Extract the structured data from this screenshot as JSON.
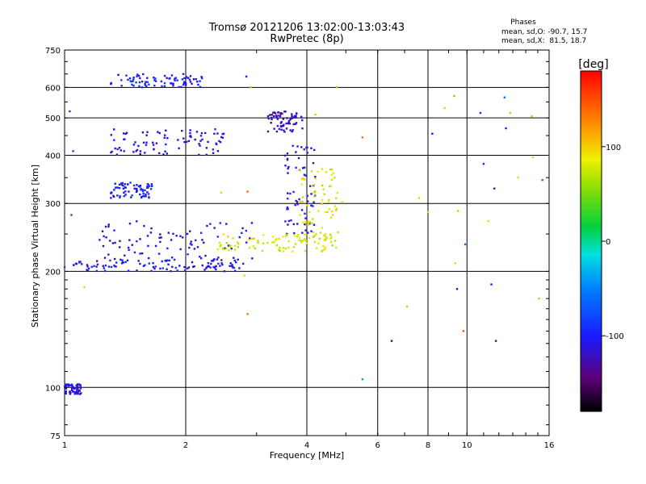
{
  "header": {
    "title_line1": "Tromsø 20121206 13:02:00-13:03:43",
    "title_line2": "RwPretec (8p)"
  },
  "phases_box": {
    "heading": "Phases",
    "line_o": "mean, sd,O: -90.7, 15.7",
    "line_x": "mean, sd,X:  81.5, 18.7"
  },
  "colorbar": {
    "unit_label": "[deg]",
    "range": [
      -180,
      180
    ],
    "tick_labels": [
      "100",
      "0",
      "-100"
    ],
    "tick_values": [
      100,
      0,
      -100
    ]
  },
  "chart_data": {
    "type": "scatter",
    "title": "Tromsø 20121206 13:02:00-13:03:43",
    "subtitle": "RwPretec (8p)",
    "xlabel": "Frequency [MHz]",
    "ylabel": "Stationary phase Virtual Height [km]",
    "x_scale": "log",
    "y_scale": "log",
    "xlim": [
      1,
      16
    ],
    "ylim": [
      75,
      750
    ],
    "x_ticks": [
      1,
      2,
      4,
      6,
      8,
      10,
      16
    ],
    "x_tick_labels": [
      "1",
      "2",
      "4",
      "6",
      "8",
      "10",
      "16"
    ],
    "y_ticks": [
      75,
      100,
      200,
      300,
      400,
      500,
      600,
      750
    ],
    "y_tick_labels": [
      "75",
      "100",
      "200",
      "300",
      "400",
      "500",
      "600",
      "750"
    ],
    "grid": true,
    "color_by": "phase [deg]",
    "clusters": [
      {
        "x_range": [
          1.3,
          2.2
        ],
        "y_range": [
          600,
          650
        ],
        "phase": -100
      },
      {
        "x_range": [
          1.3,
          2.5
        ],
        "y_range": [
          400,
          470
        ],
        "phase": -110
      },
      {
        "x_range": [
          1.3,
          1.65
        ],
        "y_range": [
          310,
          340
        ],
        "phase": -100
      },
      {
        "x_range": [
          1.2,
          3.0
        ],
        "y_range": [
          205,
          270
        ],
        "phase": -110
      },
      {
        "x_range": [
          1.05,
          2.8
        ],
        "y_range": [
          200,
          215
        ],
        "phase": -100
      },
      {
        "x_range": [
          3.2,
          3.9
        ],
        "y_range": [
          460,
          520
        ],
        "phase": -120
      },
      {
        "x_range": [
          3.5,
          4.2
        ],
        "y_range": [
          250,
          430
        ],
        "phase": -105
      },
      {
        "x_range": [
          2.4,
          4.8
        ],
        "y_range": [
          225,
          250
        ],
        "phase": 85
      },
      {
        "x_range": [
          3.8,
          4.9
        ],
        "y_range": [
          240,
          370
        ],
        "phase": 90
      },
      {
        "x_range": [
          1.0,
          1.1
        ],
        "y_range": [
          96,
          102
        ],
        "phase": -110
      }
    ],
    "points": [
      {
        "x": 1.0,
        "y": 205,
        "phase": -80
      },
      {
        "x": 1.03,
        "y": 520,
        "phase": -85
      },
      {
        "x": 1.05,
        "y": 410,
        "phase": -80
      },
      {
        "x": 1.04,
        "y": 280,
        "phase": -75
      },
      {
        "x": 1.12,
        "y": 182,
        "phase": 100
      },
      {
        "x": 2.45,
        "y": 320,
        "phase": 100
      },
      {
        "x": 2.85,
        "y": 322,
        "phase": 140
      },
      {
        "x": 2.8,
        "y": 195,
        "phase": 100
      },
      {
        "x": 2.85,
        "y": 155,
        "phase": 130
      },
      {
        "x": 2.83,
        "y": 640,
        "phase": -110
      },
      {
        "x": 2.9,
        "y": 600,
        "phase": 110
      },
      {
        "x": 4.2,
        "y": 510,
        "phase": 70
      },
      {
        "x": 4.75,
        "y": 600,
        "phase": 60
      },
      {
        "x": 5.5,
        "y": 445,
        "phase": 140
      },
      {
        "x": 5.5,
        "y": 105,
        "phase": -40
      },
      {
        "x": 6.5,
        "y": 132,
        "phase": -130
      },
      {
        "x": 7.1,
        "y": 162,
        "phase": 110
      },
      {
        "x": 7.6,
        "y": 310,
        "phase": 100
      },
      {
        "x": 8.0,
        "y": 285,
        "phase": 100
      },
      {
        "x": 8.2,
        "y": 455,
        "phase": -100
      },
      {
        "x": 8.8,
        "y": 530,
        "phase": 100
      },
      {
        "x": 9.3,
        "y": 570,
        "phase": 120
      },
      {
        "x": 9.35,
        "y": 210,
        "phase": 100
      },
      {
        "x": 9.45,
        "y": 180,
        "phase": -100
      },
      {
        "x": 9.5,
        "y": 287,
        "phase": 110
      },
      {
        "x": 9.8,
        "y": 140,
        "phase": 150
      },
      {
        "x": 9.9,
        "y": 235,
        "phase": -60
      },
      {
        "x": 10.8,
        "y": 515,
        "phase": -90
      },
      {
        "x": 11.0,
        "y": 380,
        "phase": -100
      },
      {
        "x": 11.3,
        "y": 270,
        "phase": 100
      },
      {
        "x": 11.5,
        "y": 185,
        "phase": -100
      },
      {
        "x": 11.7,
        "y": 328,
        "phase": -115
      },
      {
        "x": 11.8,
        "y": 132,
        "phase": -130
      },
      {
        "x": 12.4,
        "y": 565,
        "phase": -60
      },
      {
        "x": 12.5,
        "y": 470,
        "phase": -100
      },
      {
        "x": 12.8,
        "y": 515,
        "phase": 110
      },
      {
        "x": 13.4,
        "y": 350,
        "phase": 100
      },
      {
        "x": 14.5,
        "y": 505,
        "phase": 110
      },
      {
        "x": 14.6,
        "y": 395,
        "phase": 100
      },
      {
        "x": 15.1,
        "y": 170,
        "phase": 110
      },
      {
        "x": 15.4,
        "y": 345,
        "phase": -50
      }
    ]
  }
}
